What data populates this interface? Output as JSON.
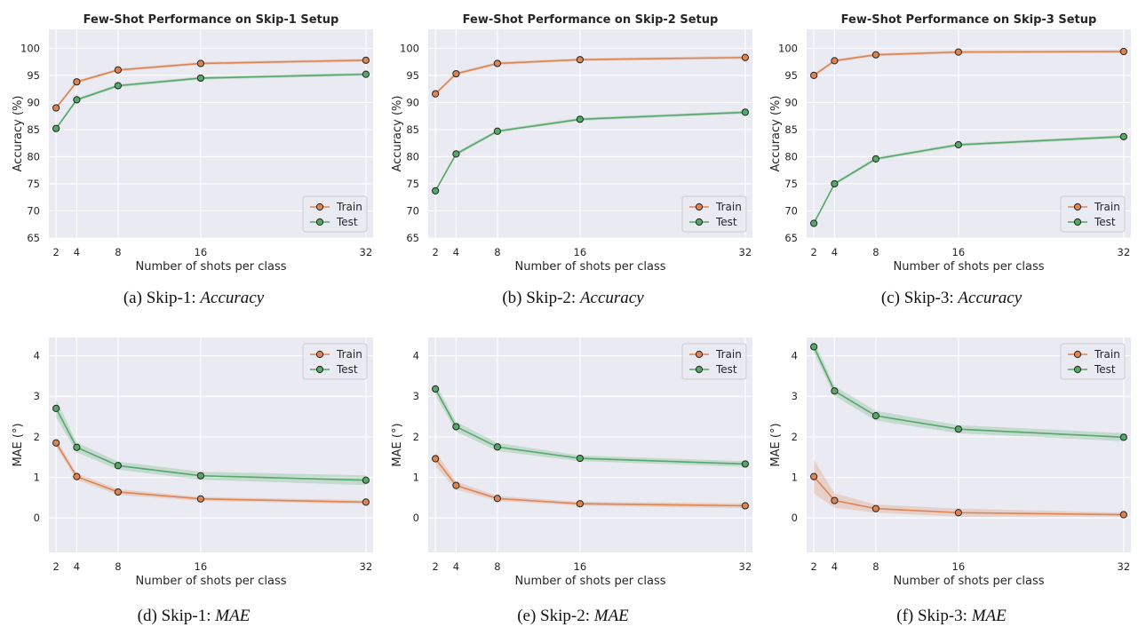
{
  "colors": {
    "train": "#dd8452",
    "test": "#55a868",
    "panel_bg": "#eaeaf2",
    "grid": "#ffffff",
    "marker_edge": "#222222"
  },
  "chart_data": [
    {
      "type": "line",
      "title": "Few-Shot Performance on Skip-1 Setup",
      "xlabel": "Number of shots per class",
      "ylabel": "Accuracy (%)",
      "caption_prefix": "(a)  Skip-1: ",
      "caption_metric": "Accuracy",
      "x": [
        2,
        4,
        8,
        16,
        32
      ],
      "xlim": [
        1.3,
        32.7
      ],
      "ylim": [
        65,
        103.5
      ],
      "yticks": [
        65,
        70,
        75,
        80,
        85,
        90,
        95,
        100
      ],
      "legend_loc": "lower right",
      "grid": true,
      "series": [
        {
          "name": "Train",
          "values": [
            89.0,
            93.8,
            96.0,
            97.2,
            97.8
          ]
        },
        {
          "name": "Test",
          "values": [
            85.2,
            90.5,
            93.1,
            94.5,
            95.2
          ]
        }
      ]
    },
    {
      "type": "line",
      "title": "Few-Shot Performance on Skip-2 Setup",
      "xlabel": "Number of shots per class",
      "ylabel": "Accuracy (%)",
      "caption_prefix": "(b)  Skip-2: ",
      "caption_metric": "Accuracy",
      "x": [
        2,
        4,
        8,
        16,
        32
      ],
      "xlim": [
        1.3,
        32.7
      ],
      "ylim": [
        65,
        103.5
      ],
      "yticks": [
        65,
        70,
        75,
        80,
        85,
        90,
        95,
        100
      ],
      "legend_loc": "lower right",
      "grid": true,
      "series": [
        {
          "name": "Train",
          "values": [
            91.6,
            95.3,
            97.2,
            97.9,
            98.3
          ]
        },
        {
          "name": "Test",
          "values": [
            73.7,
            80.5,
            84.7,
            86.9,
            88.2
          ]
        }
      ]
    },
    {
      "type": "line",
      "title": "Few-Shot Performance on Skip-3 Setup",
      "xlabel": "Number of shots per class",
      "ylabel": "Accuracy (%)",
      "caption_prefix": "(c)  Skip-3: ",
      "caption_metric": "Accuracy",
      "x": [
        2,
        4,
        8,
        16,
        32
      ],
      "xlim": [
        1.3,
        32.7
      ],
      "ylim": [
        65,
        103.5
      ],
      "yticks": [
        65,
        70,
        75,
        80,
        85,
        90,
        95,
        100
      ],
      "legend_loc": "lower right",
      "grid": true,
      "series": [
        {
          "name": "Train",
          "values": [
            95.0,
            97.7,
            98.8,
            99.3,
            99.4
          ]
        },
        {
          "name": "Test",
          "values": [
            67.7,
            75.0,
            79.6,
            82.2,
            83.7
          ]
        }
      ]
    },
    {
      "type": "line",
      "title": "",
      "xlabel": "Number of shots per class",
      "ylabel": "MAE (°)",
      "caption_prefix": "(d)  Skip-1: ",
      "caption_metric": "MAE",
      "x": [
        2,
        4,
        8,
        16,
        32
      ],
      "xlim": [
        1.3,
        32.7
      ],
      "ylim": [
        -0.85,
        4.45
      ],
      "yticks": [
        0,
        1,
        2,
        3,
        4
      ],
      "legend_loc": "upper right",
      "grid": true,
      "series": [
        {
          "name": "Train",
          "values": [
            1.85,
            1.02,
            0.64,
            0.47,
            0.39
          ],
          "band": [
            0.1,
            0.08,
            0.07,
            0.05,
            0.05
          ]
        },
        {
          "name": "Test",
          "values": [
            2.7,
            1.74,
            1.29,
            1.04,
            0.93
          ],
          "band": [
            0.22,
            0.12,
            0.1,
            0.1,
            0.12
          ]
        }
      ]
    },
    {
      "type": "line",
      "title": "",
      "xlabel": "Number of shots per class",
      "ylabel": "MAE (°)",
      "caption_prefix": "(e)  Skip-2: ",
      "caption_metric": "MAE",
      "x": [
        2,
        4,
        8,
        16,
        32
      ],
      "xlim": [
        1.3,
        32.7
      ],
      "ylim": [
        -0.85,
        4.45
      ],
      "yticks": [
        0,
        1,
        2,
        3,
        4
      ],
      "legend_loc": "upper right",
      "grid": true,
      "series": [
        {
          "name": "Train",
          "values": [
            1.46,
            0.8,
            0.48,
            0.35,
            0.3
          ],
          "band": [
            0.18,
            0.1,
            0.06,
            0.05,
            0.06
          ]
        },
        {
          "name": "Test",
          "values": [
            3.18,
            2.25,
            1.75,
            1.47,
            1.33
          ],
          "band": [
            0.15,
            0.12,
            0.1,
            0.07,
            0.07
          ]
        }
      ]
    },
    {
      "type": "line",
      "title": "",
      "xlabel": "Number of shots per class",
      "ylabel": "MAE (°)",
      "caption_prefix": "(f)  Skip-3: ",
      "caption_metric": "MAE",
      "x": [
        2,
        4,
        8,
        16,
        32
      ],
      "xlim": [
        1.3,
        32.7
      ],
      "ylim": [
        -0.85,
        4.45
      ],
      "yticks": [
        0,
        1,
        2,
        3,
        4
      ],
      "legend_loc": "upper right",
      "grid": true,
      "series": [
        {
          "name": "Train",
          "values": [
            1.02,
            0.43,
            0.23,
            0.13,
            0.08
          ],
          "band": [
            0.42,
            0.18,
            0.1,
            0.1,
            0.05
          ]
        },
        {
          "name": "Test",
          "values": [
            4.22,
            3.13,
            2.52,
            2.19,
            1.99
          ],
          "band": [
            0.15,
            0.12,
            0.12,
            0.1,
            0.1
          ]
        }
      ]
    }
  ]
}
